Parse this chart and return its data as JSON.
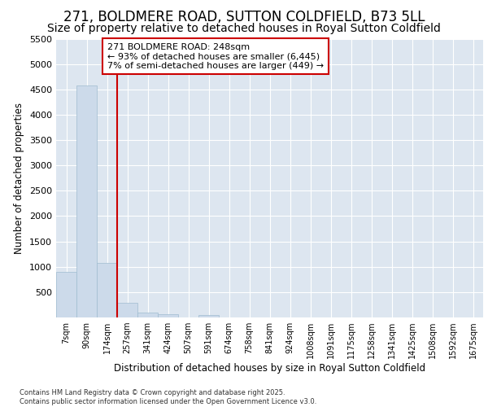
{
  "title": "271, BOLDMERE ROAD, SUTTON COLDFIELD, B73 5LL",
  "subtitle": "Size of property relative to detached houses in Royal Sutton Coldfield",
  "xlabel": "Distribution of detached houses by size in Royal Sutton Coldfield",
  "ylabel": "Number of detached properties",
  "footer_line1": "Contains HM Land Registry data © Crown copyright and database right 2025.",
  "footer_line2": "Contains public sector information licensed under the Open Government Licence v3.0.",
  "annotation_line1": "271 BOLDMERE ROAD: 248sqm",
  "annotation_line2": "← 93% of detached houses are smaller (6,445)",
  "annotation_line3": "7% of semi-detached houses are larger (449) →",
  "bar_color": "#ccdaea",
  "bar_edge_color": "#a0bcd0",
  "vline_color": "#cc0000",
  "categories": [
    "7sqm",
    "90sqm",
    "174sqm",
    "257sqm",
    "341sqm",
    "424sqm",
    "507sqm",
    "591sqm",
    "674sqm",
    "758sqm",
    "841sqm",
    "924sqm",
    "1008sqm",
    "1091sqm",
    "1175sqm",
    "1258sqm",
    "1341sqm",
    "1425sqm",
    "1508sqm",
    "1592sqm",
    "1675sqm"
  ],
  "values": [
    900,
    4580,
    1080,
    295,
    90,
    60,
    0,
    50,
    0,
    0,
    0,
    0,
    0,
    0,
    0,
    0,
    0,
    0,
    0,
    0,
    0
  ],
  "ylim": [
    0,
    5500
  ],
  "yticks": [
    0,
    500,
    1000,
    1500,
    2000,
    2500,
    3000,
    3500,
    4000,
    4500,
    5000,
    5500
  ],
  "fig_bg_color": "#ffffff",
  "plot_bg_color": "#dde6f0",
  "title_fontsize": 12,
  "subtitle_fontsize": 10,
  "annotation_box_edge_color": "#cc0000",
  "vline_position": 2.5
}
